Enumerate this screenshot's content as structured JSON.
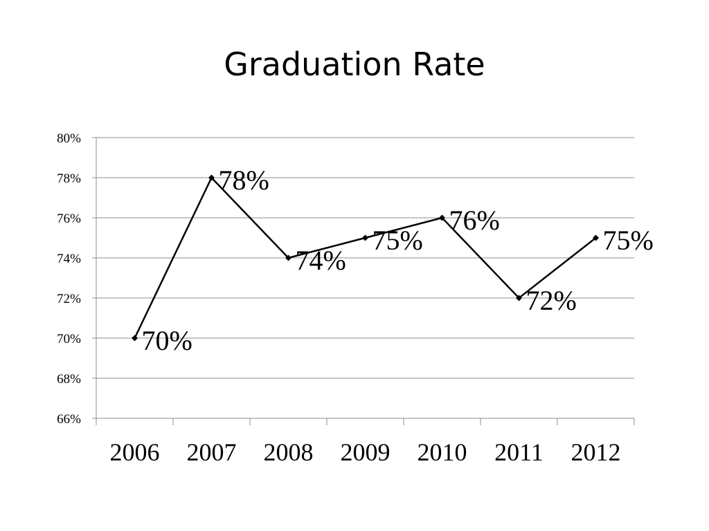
{
  "slide": {
    "title": "Graduation Rate"
  },
  "chart_data": {
    "type": "line",
    "title": "Graduation Rate",
    "xlabel": "",
    "ylabel": "",
    "categories": [
      "2006",
      "2007",
      "2008",
      "2009",
      "2010",
      "2011",
      "2012"
    ],
    "series": [
      {
        "values": [
          70,
          78,
          74,
          75,
          76,
          72,
          75
        ]
      }
    ],
    "data_labels": [
      "70%",
      "78%",
      "74%",
      "75%",
      "76%",
      "72%",
      "75%"
    ],
    "ylim": [
      66,
      80
    ],
    "yticks": [
      66,
      68,
      70,
      72,
      74,
      76,
      78,
      80
    ],
    "ytick_labels": [
      "66%",
      "68%",
      "70%",
      "72%",
      "74%",
      "76%",
      "78%",
      "80%"
    ],
    "grid": true,
    "legend": "none",
    "line_color": "#000000",
    "grid_color": "#8c8c8c"
  }
}
